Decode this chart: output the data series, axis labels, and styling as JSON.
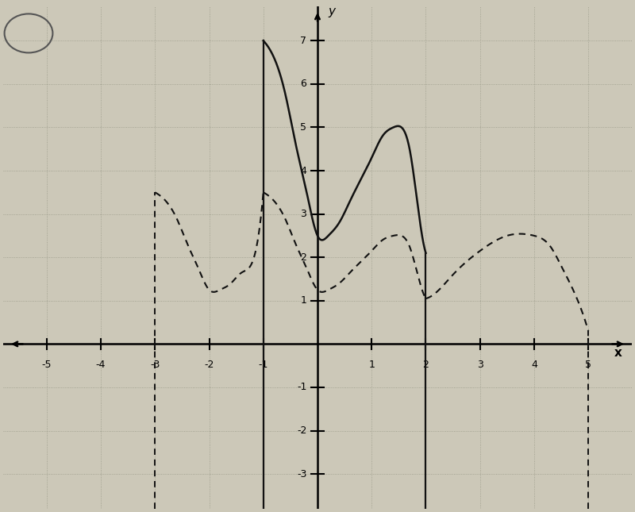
{
  "xlabel": "x",
  "ylabel": "y",
  "xlim": [
    -5.8,
    5.8
  ],
  "ylim": [
    -3.8,
    7.8
  ],
  "xticks": [
    -5,
    -4,
    -3,
    -2,
    -1,
    1,
    2,
    3,
    4,
    5
  ],
  "yticks": [
    -3,
    -2,
    -1,
    1,
    2,
    3,
    4,
    5,
    6,
    7
  ],
  "background_color": "#ccc8b8",
  "solid_color": "#111111",
  "dashed_color": "#111111",
  "fig_width": 8.0,
  "fig_height": 6.45,
  "solid_x": [
    -1.0,
    -0.8,
    -0.6,
    -0.4,
    -0.2,
    0.0,
    0.2,
    0.4,
    0.6,
    0.8,
    1.0,
    1.2,
    1.4,
    1.55,
    1.7,
    1.85,
    2.0
  ],
  "solid_y": [
    7.0,
    6.6,
    5.8,
    4.6,
    3.5,
    2.5,
    2.5,
    2.8,
    3.3,
    3.8,
    4.3,
    4.8,
    5.0,
    5.0,
    4.5,
    3.2,
    2.1
  ],
  "dashed_left_x": [
    -3.0,
    -2.8,
    -2.6,
    -2.4,
    -2.2,
    -2.0,
    -1.8,
    -1.6,
    -1.4,
    -1.2,
    -1.0
  ],
  "dashed_left_y": [
    3.5,
    3.3,
    2.9,
    2.3,
    1.75,
    1.25,
    1.25,
    1.4,
    1.65,
    1.9,
    3.5
  ],
  "dashed_right_x": [
    2.0,
    2.2,
    2.5,
    3.0,
    3.5,
    4.0,
    4.3,
    4.5,
    4.7,
    5.0
  ],
  "dashed_right_y": [
    1.05,
    1.2,
    1.6,
    2.15,
    2.5,
    2.5,
    2.25,
    1.8,
    1.3,
    0.3
  ],
  "solid_vline_x": -1.0,
  "solid_vline2_x": 2.0,
  "dashed_vline_x": -3.0,
  "dashed_vline2_x": 5.0
}
